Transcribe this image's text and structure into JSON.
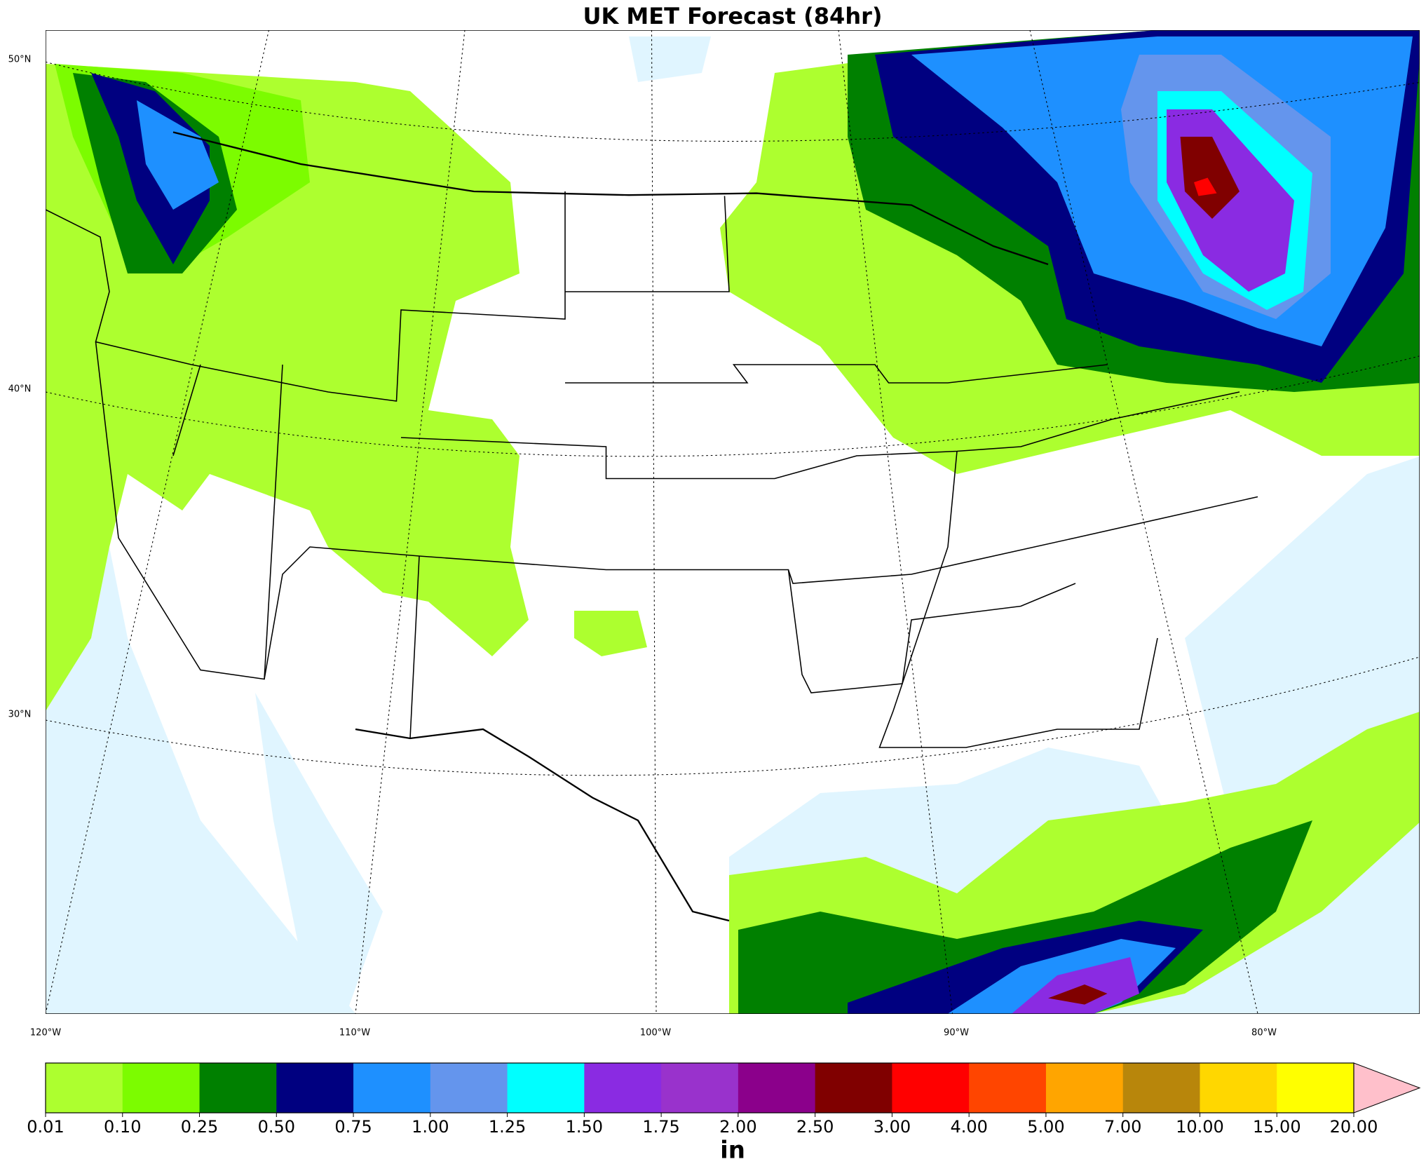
{
  "title": "UK MET Forecast (84hr)",
  "map": {
    "lon_labels": [
      "120°W",
      "110°W",
      "100°W",
      "90°W",
      "80°W"
    ],
    "lat_labels": [
      "50°N",
      "40°N",
      "30°N"
    ]
  },
  "colorbar": {
    "label": "in",
    "ticks": [
      {
        "value": 0.01,
        "label": "0.01"
      },
      {
        "value": 0.1,
        "label": "0.10"
      },
      {
        "value": 0.25,
        "label": "0.25"
      },
      {
        "value": 0.5,
        "label": "0.50"
      },
      {
        "value": 0.75,
        "label": "0.75"
      },
      {
        "value": 1,
        "label": "1.00"
      },
      {
        "value": 1.25,
        "label": "1.25"
      },
      {
        "value": 1.5,
        "label": "1.50"
      },
      {
        "value": 1.75,
        "label": "1.75"
      },
      {
        "value": 2,
        "label": "2.00"
      },
      {
        "value": 2.5,
        "label": "2.50"
      },
      {
        "value": 3,
        "label": "3.00"
      },
      {
        "value": 4,
        "label": "4.00"
      },
      {
        "value": 5,
        "label": "5.00"
      },
      {
        "value": 7,
        "label": "7.00"
      },
      {
        "value": 10,
        "label": "10.00"
      },
      {
        "value": 15,
        "label": "15.00"
      },
      {
        "value": 20,
        "label": "20.00"
      }
    ],
    "colors": [
      "#adff2f",
      "#7cfc00",
      "#008000",
      "#000080",
      "#1e90ff",
      "#6495ed",
      "#00ffff",
      "#8a2be2",
      "#9932cc",
      "#8b008b",
      "#800000",
      "#ff0000",
      "#ff4500",
      "#ffa500",
      "#b8860b",
      "#ffd700",
      "#ffff00"
    ],
    "extend_color": "#ffc0cb"
  }
}
